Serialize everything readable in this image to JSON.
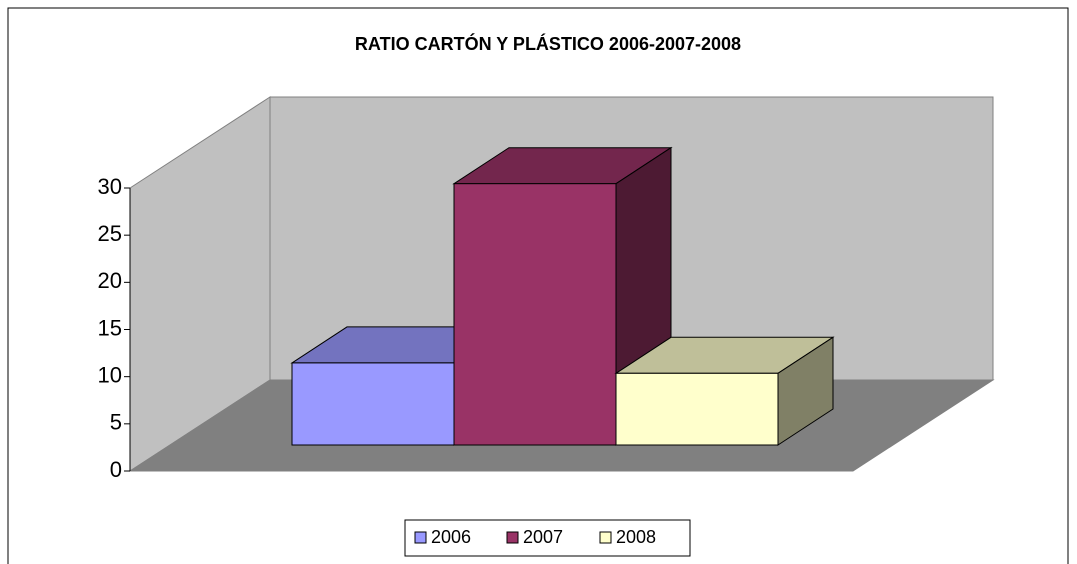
{
  "chart_data": {
    "type": "bar3d",
    "title": "RATIO CARTÓN Y PLÁSTICO 2006-2007-2008",
    "categories": [
      null
    ],
    "series": [
      {
        "name": "2006",
        "color": "#9999ff",
        "values": [
          8.7
        ]
      },
      {
        "name": "2007",
        "color": "#993366",
        "values": [
          27.7
        ]
      },
      {
        "name": "2008",
        "color": "#ffffcc",
        "values": [
          7.6
        ]
      }
    ],
    "ylim": [
      0,
      30
    ],
    "yticks": [
      0,
      5,
      10,
      15,
      20,
      25,
      30
    ],
    "legend": "bottom"
  }
}
